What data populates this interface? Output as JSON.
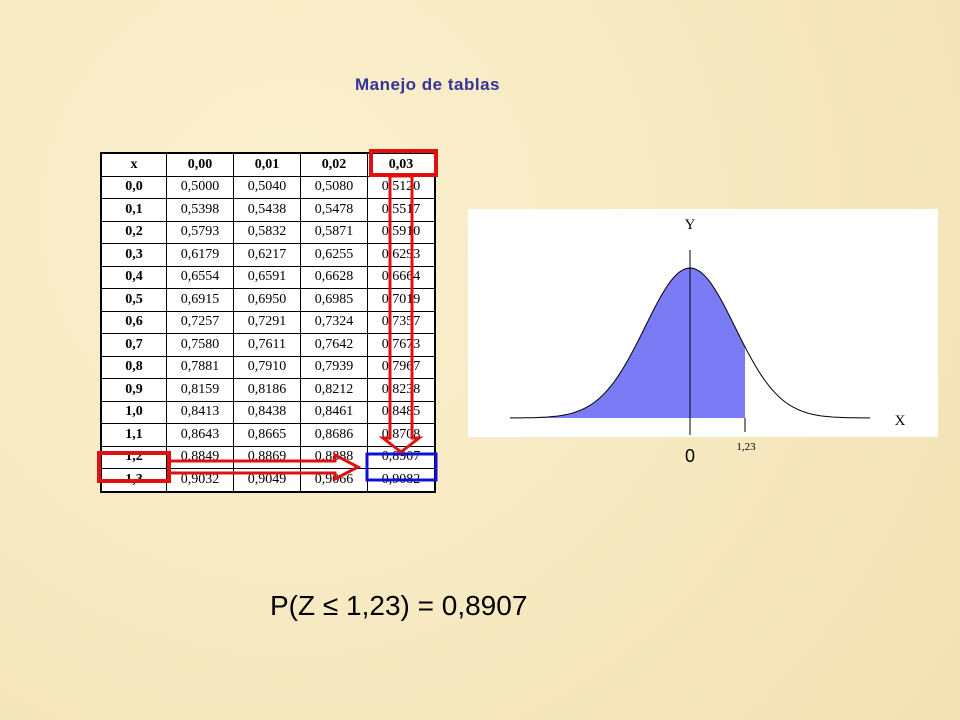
{
  "title": "Manejo de tablas",
  "table": {
    "header": [
      "x",
      "0,00",
      "0,01",
      "0,02",
      "0,03"
    ],
    "rows": [
      [
        "0,0",
        "0,5000",
        "0,5040",
        "0,5080",
        "0,5120"
      ],
      [
        "0,1",
        "0,5398",
        "0,5438",
        "0,5478",
        "0,5517"
      ],
      [
        "0,2",
        "0,5793",
        "0,5832",
        "0,5871",
        "0,5910"
      ],
      [
        "0,3",
        "0,6179",
        "0,6217",
        "0,6255",
        "0,6293"
      ],
      [
        "0,4",
        "0,6554",
        "0,6591",
        "0,6628",
        "0,6664"
      ],
      [
        "0,5",
        "0,6915",
        "0,6950",
        "0,6985",
        "0,7019"
      ],
      [
        "0,6",
        "0,7257",
        "0,7291",
        "0,7324",
        "0,7357"
      ],
      [
        "0,7",
        "0,7580",
        "0,7611",
        "0,7642",
        "0,7673"
      ],
      [
        "0,8",
        "0,7881",
        "0,7910",
        "0,7939",
        "0,7967"
      ],
      [
        "0,9",
        "0,8159",
        "0,8186",
        "0,8212",
        "0,8238"
      ],
      [
        "1,0",
        "0,8413",
        "0,8438",
        "0,8461",
        "0,8485"
      ],
      [
        "1,1",
        "0,8643",
        "0,8665",
        "0,8686",
        "0,8708"
      ],
      [
        "1,2",
        "0,8849",
        "0,8869",
        "0,8888",
        "0,8907"
      ],
      [
        "1,3",
        "0,9032",
        "0,9049",
        "0,9066",
        "0,9082"
      ]
    ]
  },
  "diagram": {
    "y_label": "Y",
    "x_label": "X",
    "origin": "0",
    "marker": "1,23"
  },
  "formula": "P(Z ≤ 1,23) = 0,8907"
}
